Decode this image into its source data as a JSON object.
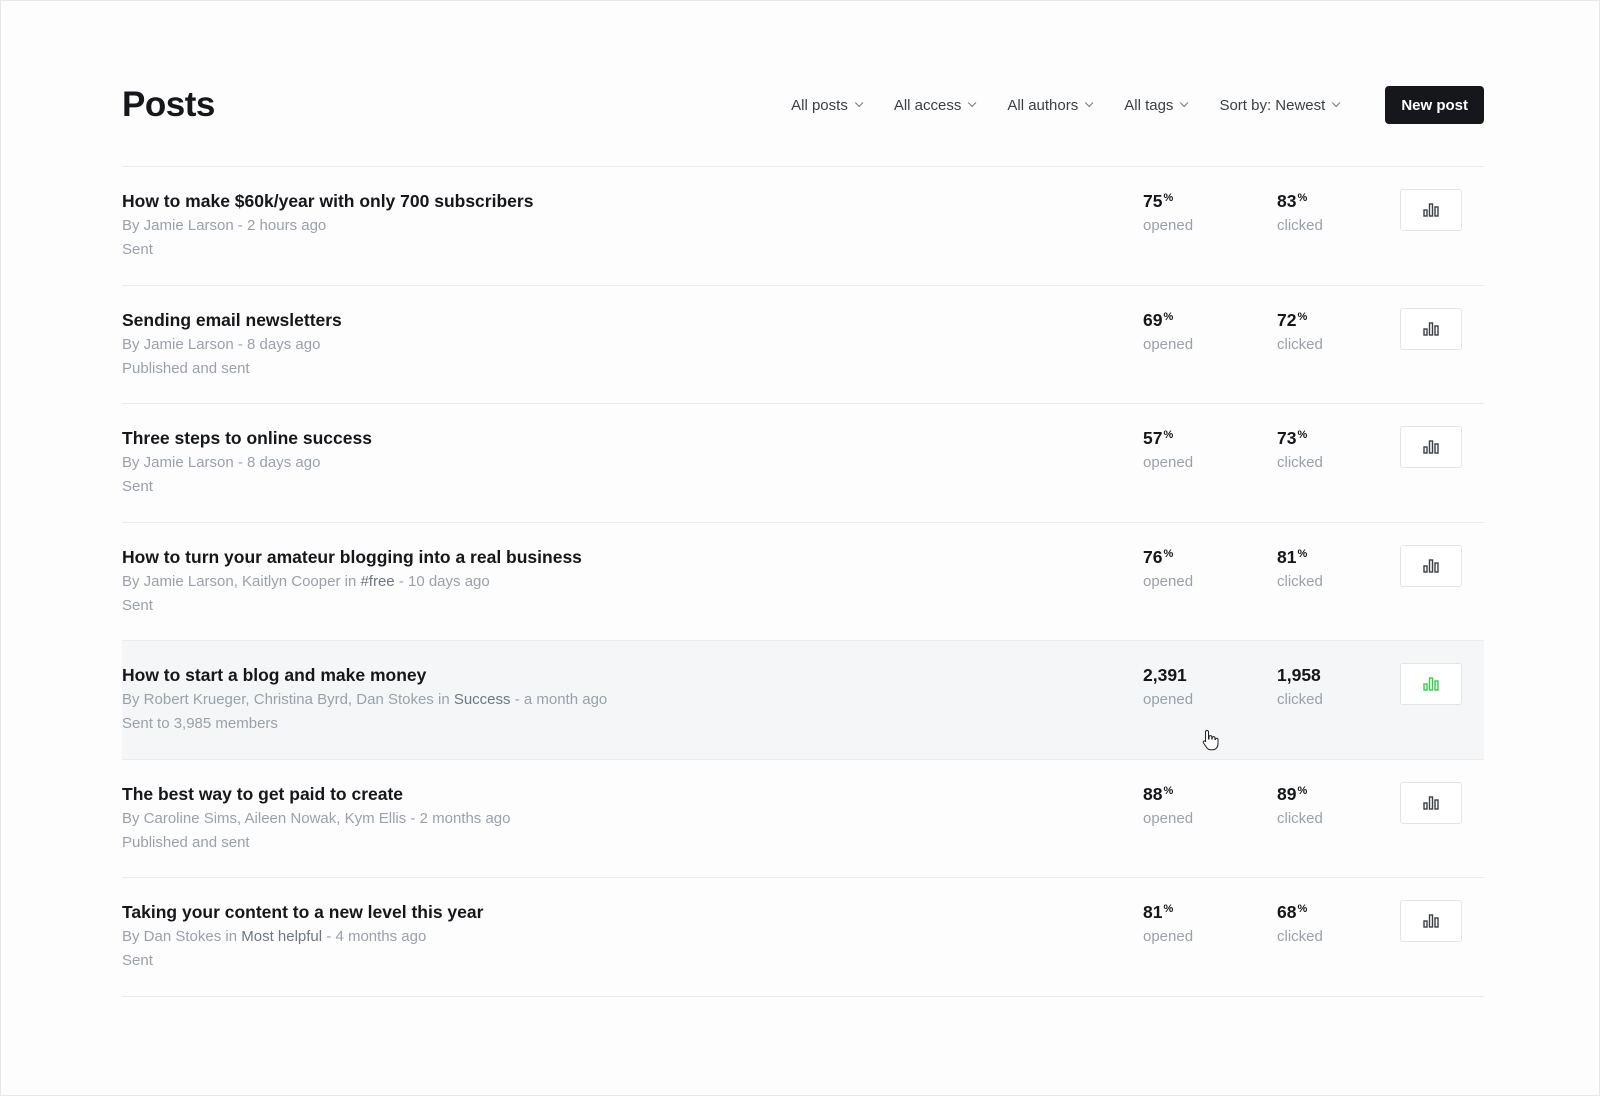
{
  "header": {
    "title": "Posts",
    "filters": [
      {
        "label": "All posts"
      },
      {
        "label": "All access"
      },
      {
        "label": "All authors"
      },
      {
        "label": "All tags"
      },
      {
        "label": "Sort by: Newest"
      }
    ],
    "new_post_label": "New post"
  },
  "colors": {
    "accent": "#15171a",
    "hover_icon": "#30cf43",
    "muted": "#9aa1ab",
    "tag": "#6e7785"
  },
  "posts": [
    {
      "title": "How to make $60k/year with only 700 subscribers",
      "by": "By Jamie Larson",
      "in": "",
      "tag": "",
      "time": " - 2 hours ago",
      "status": "Sent",
      "opened": "75",
      "opened_unit": "%",
      "opened_label": "opened",
      "clicked": "83",
      "clicked_unit": "%",
      "clicked_label": "clicked"
    },
    {
      "title": "Sending email newsletters",
      "by": "By Jamie Larson",
      "in": "",
      "tag": "",
      "time": " - 8 days ago",
      "status": "Published and sent",
      "opened": "69",
      "opened_unit": "%",
      "opened_label": "opened",
      "clicked": "72",
      "clicked_unit": "%",
      "clicked_label": "clicked"
    },
    {
      "title": "Three steps to online success",
      "by": "By Jamie Larson",
      "in": "",
      "tag": "",
      "time": " - 8 days ago",
      "status": "Sent",
      "opened": "57",
      "opened_unit": "%",
      "opened_label": "opened",
      "clicked": "73",
      "clicked_unit": "%",
      "clicked_label": "clicked"
    },
    {
      "title": "How to turn your amateur blogging into a real business",
      "by": "By Jamie Larson, Kaitlyn Cooper",
      "in": " in ",
      "tag": "#free",
      "time": " - 10 days ago",
      "status": "Sent",
      "opened": "76",
      "opened_unit": "%",
      "opened_label": "opened",
      "clicked": "81",
      "clicked_unit": "%",
      "clicked_label": "clicked"
    },
    {
      "title": "How to start a blog and make money",
      "by": "By Robert Krueger, Christina Byrd, Dan Stokes",
      "in": " in ",
      "tag": "Success",
      "time": " - a month ago",
      "status": "Sent to 3,985 members",
      "opened": "2,391",
      "opened_unit": "",
      "opened_label": "opened",
      "clicked": "1,958",
      "clicked_unit": "",
      "clicked_label": "clicked",
      "hovered": true
    },
    {
      "title": "The best way to get paid to create",
      "by": "By Caroline Sims, Aileen Nowak, Kym Ellis",
      "in": "",
      "tag": "",
      "time": " - 2 months ago",
      "status": "Published and sent",
      "opened": "88",
      "opened_unit": "%",
      "opened_label": "opened",
      "clicked": "89",
      "clicked_unit": "%",
      "clicked_label": "clicked"
    },
    {
      "title": "Taking your content to a new level this year",
      "by": "By Dan Stokes",
      "in": " in ",
      "tag": "Most helpful",
      "time": " - 4 months ago",
      "status": "Sent",
      "opened": "81",
      "opened_unit": "%",
      "opened_label": "opened",
      "clicked": "68",
      "clicked_unit": "%",
      "clicked_label": "clicked"
    }
  ]
}
